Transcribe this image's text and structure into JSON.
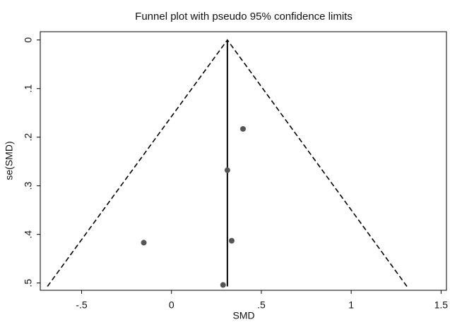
{
  "chart_data": {
    "type": "scatter",
    "title": "Funnel plot with pseudo 95% confidence limits",
    "x_label": "SMD",
    "y_label": "se(SMD)",
    "x": [
      0.398,
      0.311,
      0.335,
      -0.154,
      0.287
    ],
    "values": [
      0.183,
      0.268,
      0.413,
      0.417,
      0.504
    ],
    "color": "#555555",
    "funnel": {
      "x": [
        -0.69,
        0.311,
        1.31
      ],
      "y": [
        0.507,
        0,
        0.507
      ]
    },
    "pooled_line": {
      "x": [
        0.311,
        0.311
      ],
      "y": [
        0,
        0.507
      ]
    },
    "xlim": [
      -0.73,
      1.53
    ],
    "ylim": [
      -0.017,
      0.515
    ],
    "y_reversed": true,
    "xticks": [
      {
        "value": -0.5,
        "label": "-.5"
      },
      0,
      {
        "value": 0.5,
        "label": ".5"
      },
      1,
      1.5
    ],
    "yticks": [
      0,
      {
        "value": 0.1,
        "label": ".1"
      },
      {
        "value": 0.2,
        "label": ".2"
      },
      {
        "value": 0.3,
        "label": ".3"
      },
      {
        "value": 0.4,
        "label": ".4"
      },
      {
        "value": 0.5,
        "label": ".5"
      }
    ]
  }
}
